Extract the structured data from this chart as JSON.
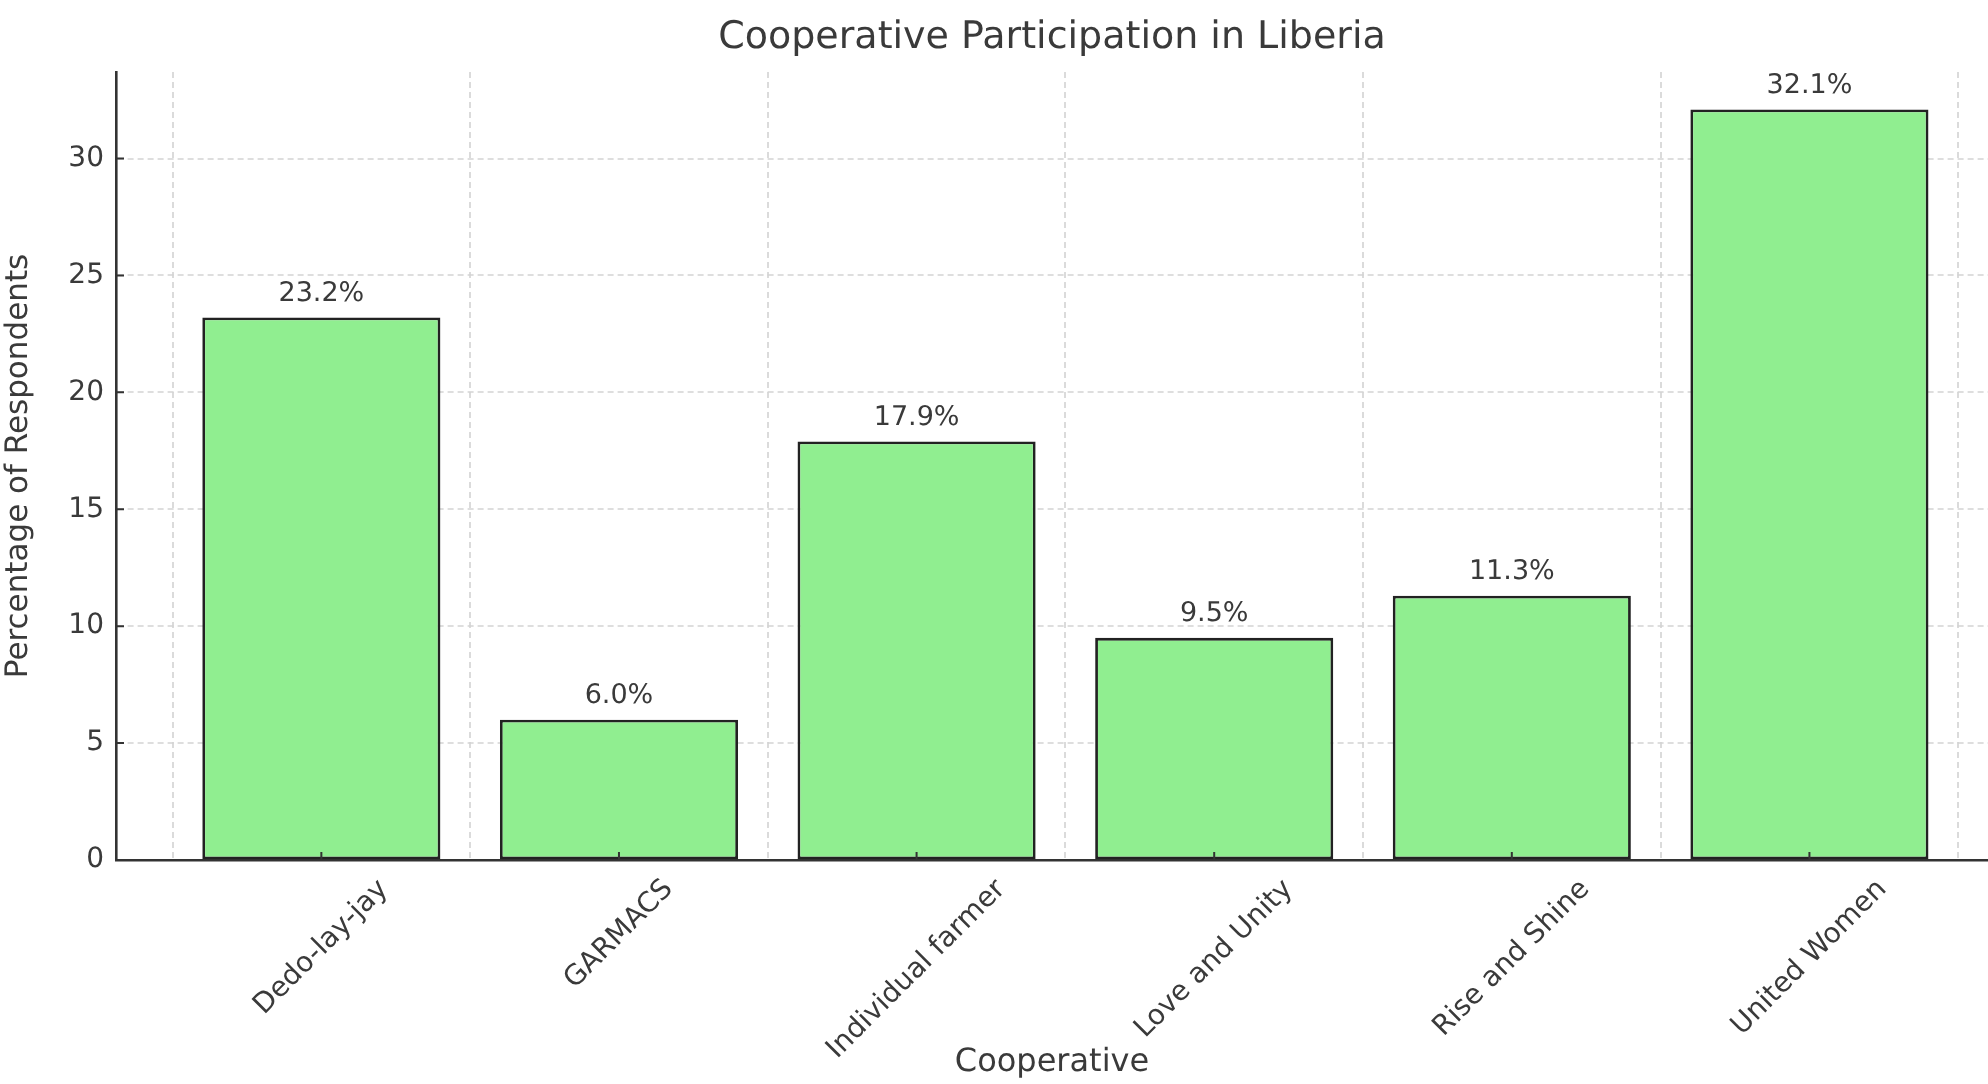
{
  "chart_data": {
    "type": "bar",
    "title": "Cooperative Participation in Liberia",
    "xlabel": "Cooperative",
    "ylabel": "Percentage of Respondents",
    "categories": [
      "Dedo-lay-jay",
      "GARMACS",
      "Individual farmer",
      "Love and Unity",
      "Rise and Shine",
      "United Women"
    ],
    "values": [
      23.2,
      6.0,
      17.9,
      9.5,
      11.3,
      32.1
    ],
    "value_labels": [
      "23.2%",
      "6.0%",
      "17.9%",
      "9.5%",
      "11.3%",
      "32.1%"
    ],
    "color": "#90ee90",
    "ylim": [
      0,
      33.7
    ],
    "yticks": [
      0,
      5,
      10,
      15,
      20,
      25,
      30
    ],
    "grid": true
  }
}
